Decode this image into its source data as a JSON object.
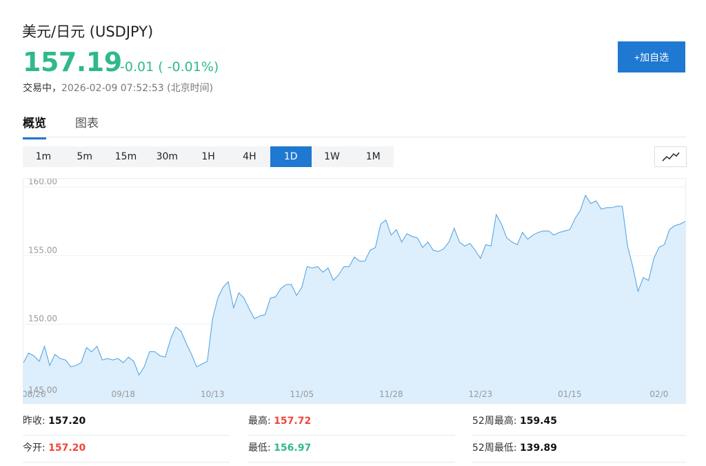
{
  "header": {
    "title": "美元/日元 (USDJPY)",
    "price": "157.19",
    "change": "-0.01 ( -0.01%)",
    "status": "交易中，",
    "timestamp": "2026-02-09 07:52:53",
    "timezone": "(北京时间)",
    "add_button": "+加自选"
  },
  "tabs": [
    {
      "label": "概览",
      "active": true
    },
    {
      "label": "图表",
      "active": false
    }
  ],
  "periods": [
    "1m",
    "5m",
    "15m",
    "30m",
    "1H",
    "4H",
    "1D",
    "1W",
    "1M"
  ],
  "active_period": "1D",
  "chart_toggle_icon": "line-chart-icon",
  "colors": {
    "up_green": "#2fb98a",
    "down_red": "#f0453a",
    "accent_blue": "#1f78d1",
    "area_fill": "#ddeefc",
    "line": "#4a9fe0"
  },
  "chart_data": {
    "type": "area",
    "y_ticks": [
      "160.00",
      "155.00",
      "150.00",
      "145.00"
    ],
    "ylim": [
      145,
      160
    ],
    "x_ticks": [
      {
        "label": "08/26",
        "index": 2
      },
      {
        "label": "09/18",
        "index": 19
      },
      {
        "label": "10/13",
        "index": 36
      },
      {
        "label": "11/05",
        "index": 53
      },
      {
        "label": "11/28",
        "index": 70
      },
      {
        "label": "12/23",
        "index": 87
      },
      {
        "label": "01/15",
        "index": 104
      },
      {
        "label": "02/0",
        "index": 121
      }
    ],
    "values": [
      147.2,
      147.9,
      147.7,
      147.3,
      148.4,
      147.0,
      147.8,
      147.5,
      147.4,
      146.9,
      147.0,
      147.2,
      148.3,
      148.0,
      148.4,
      147.4,
      147.5,
      147.4,
      147.5,
      147.2,
      147.6,
      147.3,
      146.3,
      146.9,
      148.0,
      148.0,
      147.7,
      147.6,
      148.9,
      149.8,
      149.5,
      148.6,
      147.8,
      146.9,
      147.1,
      147.3,
      150.4,
      151.9,
      152.7,
      153.1,
      151.2,
      152.3,
      151.9,
      151.1,
      150.4,
      150.6,
      150.7,
      151.9,
      152.0,
      152.6,
      152.9,
      152.9,
      152.1,
      152.7,
      154.2,
      154.1,
      154.2,
      153.8,
      154.1,
      153.2,
      153.6,
      154.2,
      154.2,
      154.9,
      154.6,
      154.6,
      155.4,
      155.6,
      157.3,
      157.6,
      156.5,
      156.9,
      156.0,
      156.6,
      156.4,
      156.3,
      155.6,
      156.0,
      155.4,
      155.3,
      155.5,
      156.0,
      157.0,
      156.0,
      155.7,
      155.9,
      155.4,
      154.8,
      155.8,
      155.7,
      158.0,
      157.3,
      156.3,
      156.0,
      155.8,
      156.7,
      156.2,
      156.5,
      156.7,
      156.8,
      156.8,
      156.5,
      156.7,
      156.8,
      156.9,
      157.7,
      158.3,
      159.4,
      158.8,
      159.0,
      158.4,
      158.5,
      158.5,
      158.6,
      158.6,
      155.7,
      154.2,
      152.4,
      153.4,
      153.2,
      154.8,
      155.6,
      155.8,
      156.9,
      157.2,
      157.3,
      157.5
    ]
  },
  "stats": {
    "prev_close": {
      "label": "昨收:",
      "value": "157.20"
    },
    "high": {
      "label": "最高:",
      "value": "157.72"
    },
    "high_52w": {
      "label": "52周最高:",
      "value": "159.45"
    },
    "open": {
      "label": "今开:",
      "value": "157.20"
    },
    "low": {
      "label": "最低:",
      "value": "156.97"
    },
    "low_52w": {
      "label": "52周最低:",
      "value": "139.89"
    }
  }
}
